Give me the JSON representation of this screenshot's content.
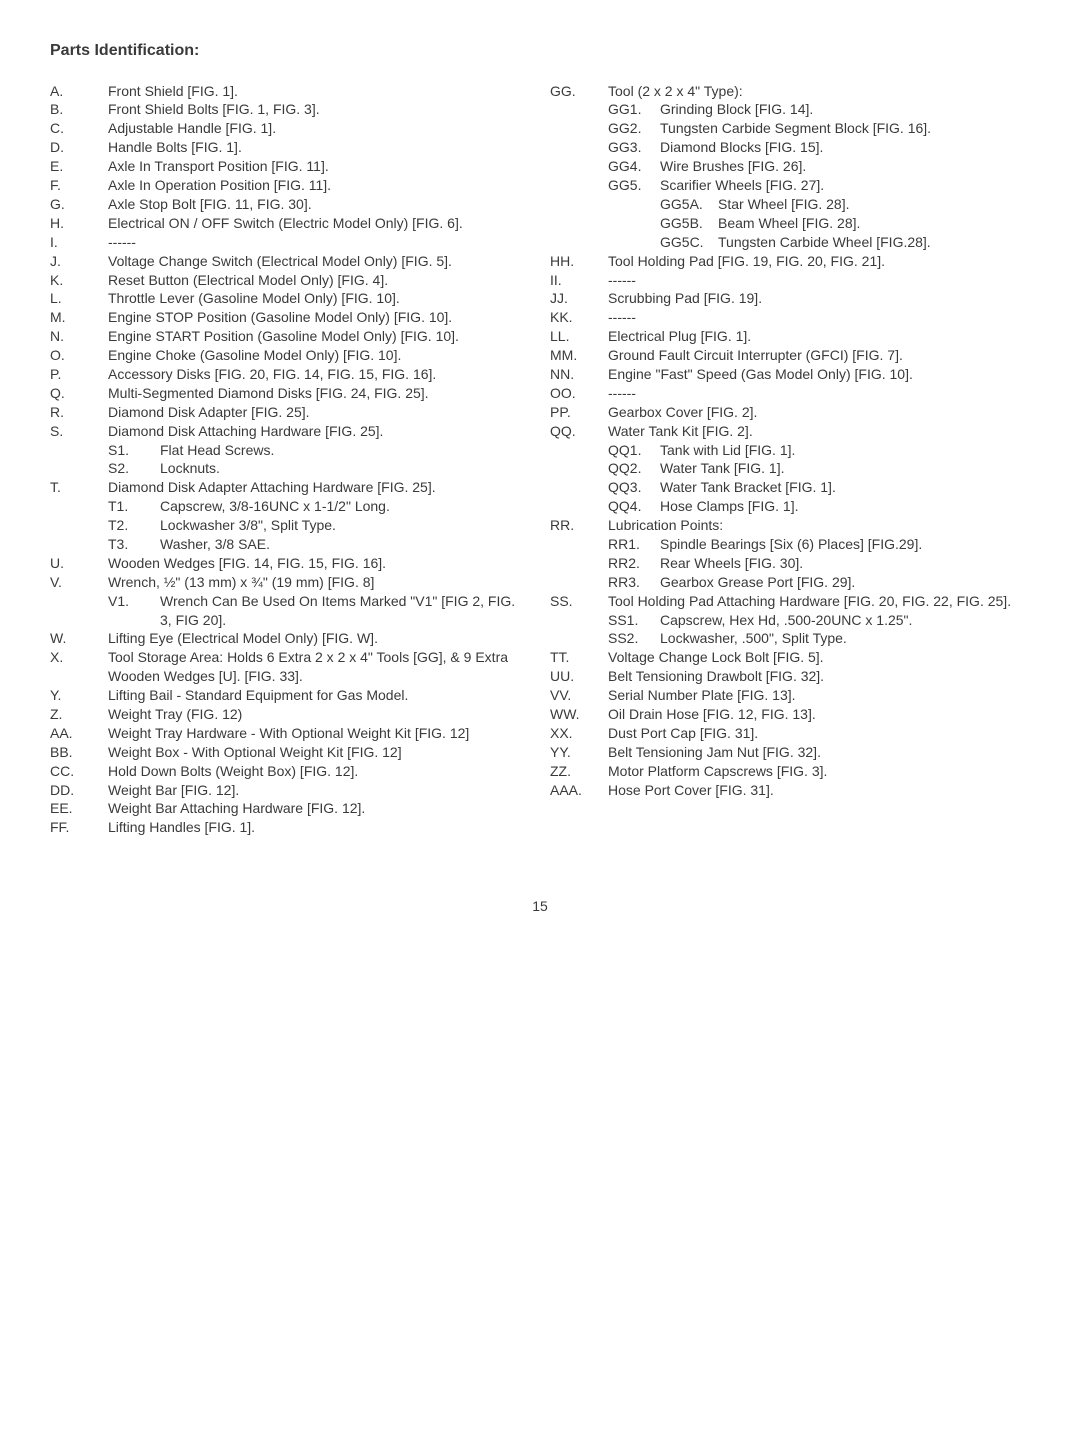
{
  "title": "Parts Identification:",
  "pagenum": "15",
  "left": [
    {
      "k": "A.",
      "v": "Front Shield [FIG. 1]."
    },
    {
      "k": "B.",
      "v": "Front Shield Bolts [FIG. 1, FIG. 3]."
    },
    {
      "k": "C.",
      "v": "Adjustable Handle [FIG. 1]."
    },
    {
      "k": "D.",
      "v": "Handle Bolts [FIG. 1]."
    },
    {
      "k": "E.",
      "v": "Axle In Transport Position [FIG. 11]."
    },
    {
      "k": "F.",
      "v": "Axle In Operation Position [FIG. 11]."
    },
    {
      "k": "G.",
      "v": "Axle Stop Bolt [FIG. 11, FIG. 30]."
    },
    {
      "k": "H.",
      "v": "Electrical ON / OFF Switch (Electric Model Only) [FIG. 6]."
    },
    {
      "k": "I.",
      "v": "------"
    },
    {
      "k": "J.",
      "v": "Voltage Change Switch (Electrical Model Only) [FIG. 5]."
    },
    {
      "k": "K.",
      "v": "Reset Button (Electrical Model Only) [FIG. 4]."
    },
    {
      "k": "L.",
      "v": "Throttle Lever (Gasoline Model Only) [FIG. 10]."
    },
    {
      "k": "M.",
      "v": "Engine STOP Position (Gasoline Model Only) [FIG. 10]."
    },
    {
      "k": "N.",
      "v": "Engine START Position (Gasoline Model Only) [FIG. 10]."
    },
    {
      "k": "O.",
      "v": "Engine Choke (Gasoline Model Only) [FIG. 10]."
    },
    {
      "k": "P.",
      "v": "Accessory Disks [FIG. 20, FIG. 14, FIG. 15, FIG. 16]."
    },
    {
      "k": "Q.",
      "v": "Multi-Segmented Diamond Disks [FIG. 24, FIG. 25]."
    },
    {
      "k": "R.",
      "v": "Diamond Disk Adapter [FIG. 25]."
    },
    {
      "k": "S.",
      "v": "Diamond Disk Attaching Hardware [FIG. 25].",
      "sub": [
        {
          "k": "S1.",
          "v": "Flat Head Screws."
        },
        {
          "k": "S2.",
          "v": "Locknuts."
        }
      ]
    },
    {
      "k": "T.",
      "v": "Diamond Disk Adapter Attaching Hardware [FIG. 25].",
      "sub": [
        {
          "k": "T1.",
          "v": "Capscrew, 3/8-16UNC x 1-1/2\" Long."
        },
        {
          "k": "T2.",
          "v": "Lockwasher 3/8\", Split Type."
        },
        {
          "k": "T3.",
          "v": "Washer, 3/8 SAE."
        }
      ]
    },
    {
      "k": "U.",
      "v": "Wooden Wedges [FIG. 14, FIG. 15, FIG. 16]."
    },
    {
      "k": "V.",
      "v": "Wrench, ½\" (13 mm) x ¾\" (19 mm) [FIG. 8]",
      "sub": [
        {
          "k": "V1.",
          "v": "Wrench Can Be Used On Items Marked \"V1\" [FIG 2, FIG. 3, FIG 20]."
        }
      ]
    },
    {
      "k": "W.",
      "v": "Lifting Eye (Electrical Model Only) [FIG. W]."
    },
    {
      "k": "X.",
      "v": "Tool Storage Area: Holds 6 Extra 2 x 2 x 4\" Tools [GG], & 9 Extra Wooden Wedges [U]. [FIG. 33]."
    },
    {
      "k": "Y.",
      "v": "Lifting Bail - Standard Equipment for Gas Model."
    },
    {
      "k": "Z.",
      "v": "Weight Tray (FIG. 12)"
    },
    {
      "k": "AA.",
      "v": "Weight Tray Hardware - With Optional Weight Kit [FIG. 12]"
    },
    {
      "k": "BB.",
      "v": "Weight Box - With Optional Weight Kit [FIG. 12]"
    },
    {
      "k": "CC.",
      "v": "Hold Down Bolts (Weight Box) [FIG. 12]."
    },
    {
      "k": "DD.",
      "v": "Weight Bar [FIG. 12]."
    },
    {
      "k": "EE.",
      "v": "Weight Bar Attaching Hardware [FIG. 12]."
    },
    {
      "k": "FF.",
      "v": "Lifting Handles [FIG. 1]."
    }
  ],
  "right": [
    {
      "k": "GG.",
      "v": "Tool (2 x 2 x 4\" Type):",
      "sub": [
        {
          "k": "GG1.",
          "v": "Grinding Block [FIG. 14]."
        },
        {
          "k": "GG2.",
          "v": "Tungsten Carbide Segment Block [FIG. 16]."
        },
        {
          "k": "GG3.",
          "v": "Diamond Blocks [FIG. 15]."
        },
        {
          "k": "GG4.",
          "v": "Wire Brushes [FIG. 26]."
        },
        {
          "k": "GG5.",
          "v": "Scarifier Wheels [FIG. 27].",
          "subsub": [
            {
              "k": "GG5A.",
              "v": "Star Wheel [FIG. 28]."
            },
            {
              "k": "GG5B.",
              "v": "Beam Wheel [FIG. 28]."
            },
            {
              "k": "GG5C.",
              "v": "Tungsten Carbide Wheel [FIG.28]."
            }
          ]
        }
      ]
    },
    {
      "k": "HH.",
      "v": "Tool Holding Pad [FIG. 19, FIG. 20, FIG. 21]."
    },
    {
      "k": "II.",
      "v": "------"
    },
    {
      "k": "JJ.",
      "v": "Scrubbing Pad [FIG. 19]."
    },
    {
      "k": "KK.",
      "v": "------"
    },
    {
      "k": "LL.",
      "v": "Electrical Plug [FIG. 1]."
    },
    {
      "k": "MM.",
      "v": "Ground Fault Circuit Interrupter (GFCI) [FIG. 7]."
    },
    {
      "k": "NN.",
      "v": "Engine \"Fast\" Speed (Gas Model Only) [FIG. 10]."
    },
    {
      "k": "OO.",
      "v": "------"
    },
    {
      "k": "PP.",
      "v": "Gearbox Cover [FIG. 2]."
    },
    {
      "k": "QQ.",
      "v": "Water Tank Kit [FIG. 2].",
      "sub": [
        {
          "k": "QQ1.",
          "v": "Tank with Lid [FIG. 1]."
        },
        {
          "k": "QQ2.",
          "v": "Water Tank [FIG. 1]."
        },
        {
          "k": "QQ3.",
          "v": "Water Tank Bracket [FIG. 1]."
        },
        {
          "k": "QQ4.",
          "v": "Hose Clamps [FIG. 1]."
        }
      ]
    },
    {
      "k": "RR.",
      "v": "Lubrication Points:",
      "sub": [
        {
          "k": "RR1.",
          "v": "Spindle Bearings [Six (6) Places] [FIG.29]."
        },
        {
          "k": "RR2.",
          "v": "Rear Wheels [FIG. 30]."
        },
        {
          "k": "RR3.",
          "v": "Gearbox Grease Port [FIG. 29]."
        }
      ]
    },
    {
      "k": "SS.",
      "v": "Tool Holding Pad Attaching Hardware [FIG. 20, FIG. 22, FIG. 25].",
      "sub": [
        {
          "k": "SS1.",
          "v": "Capscrew, Hex Hd, .500-20UNC x 1.25\"."
        },
        {
          "k": "SS2.",
          "v": "Lockwasher, .500\", Split Type."
        }
      ]
    },
    {
      "k": "TT.",
      "v": "Voltage Change Lock Bolt [FIG. 5]."
    },
    {
      "k": "UU.",
      "v": "Belt Tensioning Drawbolt [FIG. 32]."
    },
    {
      "k": "VV.",
      "v": "Serial Number Plate [FIG. 13]."
    },
    {
      "k": "WW.",
      "v": "Oil Drain Hose [FIG. 12, FIG. 13]."
    },
    {
      "k": "XX.",
      "v": "Dust Port Cap [FIG. 31]."
    },
    {
      "k": "YY.",
      "v": "Belt Tensioning Jam Nut [FIG. 32]."
    },
    {
      "k": "ZZ.",
      "v": "Motor Platform Capscrews [FIG. 3]."
    },
    {
      "k": "AAA.",
      "v": "Hose Port Cover [FIG. 31]."
    }
  ]
}
